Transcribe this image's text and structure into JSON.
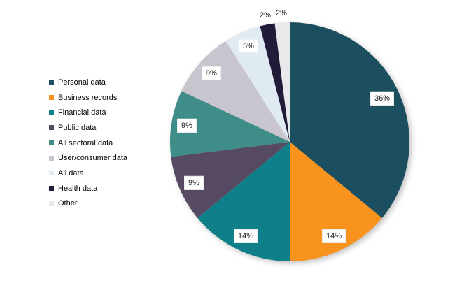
{
  "chart_data": {
    "type": "pie",
    "title": "",
    "legend_position": "left",
    "start_angle_deg": 0,
    "direction": "clockwise",
    "background_color": "#ffffff",
    "label_text_color": "#1a1a1a",
    "slices": [
      {
        "label": "Personal data",
        "value": 36,
        "pct_label": "36%",
        "color": "#1b4e5f",
        "label_placement": "inside"
      },
      {
        "label": "Business records",
        "value": 14,
        "pct_label": "14%",
        "color": "#f8941e",
        "label_placement": "inside"
      },
      {
        "label": "Financial data",
        "value": 14,
        "pct_label": "14%",
        "color": "#0f8089",
        "label_placement": "inside"
      },
      {
        "label": "Public data",
        "value": 9,
        "pct_label": "9%",
        "color": "#564a63",
        "label_placement": "inside"
      },
      {
        "label": "All sectoral data",
        "value": 9,
        "pct_label": "9%",
        "color": "#3f8d88",
        "label_placement": "inside"
      },
      {
        "label": "User/consumer data",
        "value": 9,
        "pct_label": "9%",
        "color": "#c8c5cf",
        "label_placement": "inside"
      },
      {
        "label": "All data",
        "value": 5,
        "pct_label": "5%",
        "color": "#dfebf1",
        "label_placement": "inside"
      },
      {
        "label": "Health data",
        "value": 2,
        "pct_label": "2%",
        "color": "#211b39",
        "label_placement": "outside"
      },
      {
        "label": "Other",
        "value": 2,
        "pct_label": "2%",
        "color": "#e9e8ea",
        "label_placement": "outside"
      }
    ]
  }
}
